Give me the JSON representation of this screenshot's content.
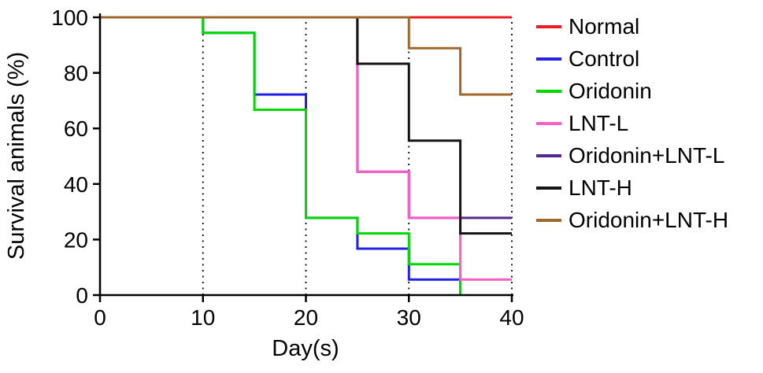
{
  "chart_data": {
    "type": "line",
    "subtype": "kaplan-meier-step",
    "title": "",
    "xlabel": "Day(s)",
    "ylabel": "Survival animals (%)",
    "xlim": [
      0,
      40
    ],
    "ylim": [
      0,
      100
    ],
    "xticks": [
      0,
      10,
      20,
      30,
      40
    ],
    "yticks": [
      0,
      20,
      40,
      60,
      80,
      100
    ],
    "grid": {
      "vertical_dotted_at": [
        10,
        20,
        30,
        40
      ]
    },
    "legend_position": "right",
    "series": [
      {
        "name": "Normal",
        "color": "#ed1c24",
        "points": [
          [
            0,
            100
          ]
        ],
        "end_day": 40
      },
      {
        "name": "Control",
        "color": "#2121e8",
        "points": [
          [
            0,
            100
          ],
          [
            10,
            94.4
          ],
          [
            15,
            72.2
          ],
          [
            20,
            27.8
          ],
          [
            25,
            16.7
          ],
          [
            30,
            5.6
          ],
          [
            35,
            0
          ]
        ],
        "end_day": 35
      },
      {
        "name": "Oridonin",
        "color": "#00d800",
        "points": [
          [
            0,
            100
          ],
          [
            10,
            94.4
          ],
          [
            15,
            66.7
          ],
          [
            20,
            27.8
          ],
          [
            25,
            22.2
          ],
          [
            30,
            11.1
          ],
          [
            35,
            0
          ]
        ],
        "end_day": 35
      },
      {
        "name": "LNT-L",
        "color": "#f65fc5",
        "points": [
          [
            0,
            100
          ],
          [
            25,
            44.4
          ],
          [
            30,
            27.8
          ],
          [
            35,
            5.6
          ]
        ],
        "end_day": 40
      },
      {
        "name": "Oridonin+LNT-L",
        "color": "#55298c",
        "points": [
          [
            0,
            100
          ],
          [
            25,
            44.4
          ],
          [
            30,
            27.8
          ]
        ],
        "end_day": 40
      },
      {
        "name": "LNT-H",
        "color": "#141414",
        "points": [
          [
            0,
            100
          ],
          [
            25,
            83.3
          ],
          [
            30,
            55.6
          ],
          [
            35,
            22.2
          ]
        ],
        "end_day": 40
      },
      {
        "name": "Oridonin+LNT-H",
        "color": "#a0682b",
        "points": [
          [
            0,
            100
          ],
          [
            30,
            88.9
          ],
          [
            35,
            72.2
          ]
        ],
        "end_day": 40
      }
    ],
    "draw_order": [
      0,
      1,
      2,
      4,
      3,
      5,
      6
    ]
  }
}
